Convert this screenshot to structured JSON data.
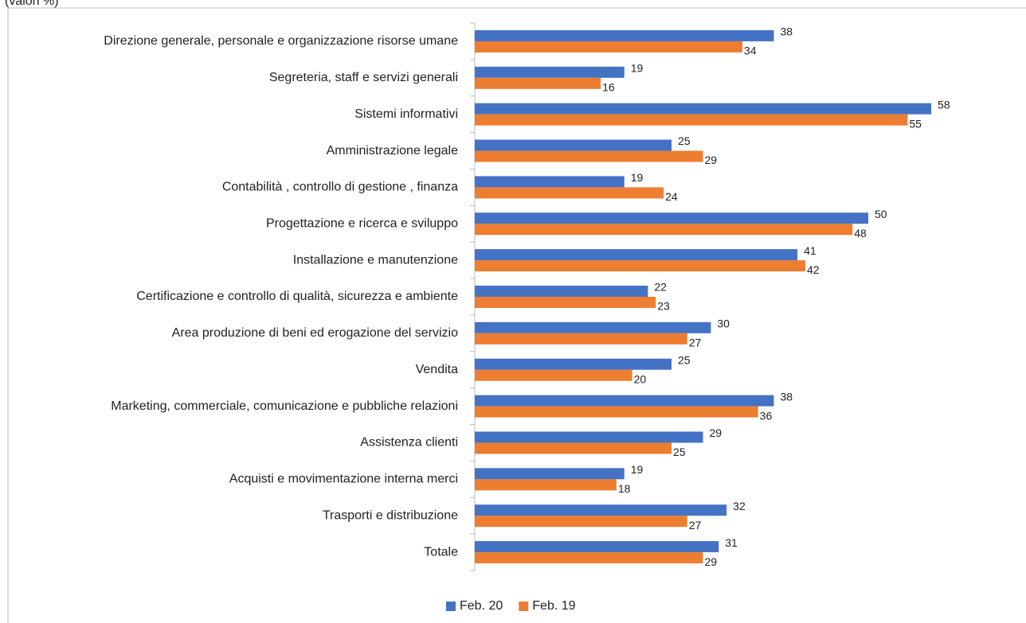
{
  "chart_data": {
    "type": "bar",
    "orientation": "horizontal",
    "subtitle": "(valori %)",
    "categories": [
      "Direzione generale, personale e organizzazione risorse umane",
      "Segreteria, staff e servizi generali",
      "Sistemi informativi",
      "Amministrazione legale ",
      "Contabilità , controllo di gestione , finanza ",
      "Progettazione e ricerca e sviluppo",
      "Installazione e manutenzione",
      "Certificazione e controllo di qualità, sicurezza e ambiente ",
      "Area produzione di beni ed erogazione del servizio",
      "Vendita",
      "Marketing, commerciale, comunicazione e pubbliche relazioni",
      "Assistenza clienti",
      "Acquisti e movimentazione interna merci",
      "Trasporti e distribuzione",
      "Totale"
    ],
    "series": [
      {
        "name": "Feb. 20",
        "color": "#4472c4",
        "values": [
          38,
          19,
          58,
          25,
          19,
          50,
          41,
          22,
          30,
          25,
          38,
          29,
          19,
          32,
          31
        ]
      },
      {
        "name": "Feb. 19",
        "color": "#ed7d31",
        "values": [
          34,
          16,
          55,
          29,
          24,
          48,
          42,
          23,
          27,
          20,
          36,
          25,
          18,
          27,
          29
        ]
      }
    ],
    "xlim": [
      0,
      60
    ],
    "legend": "bottom"
  }
}
